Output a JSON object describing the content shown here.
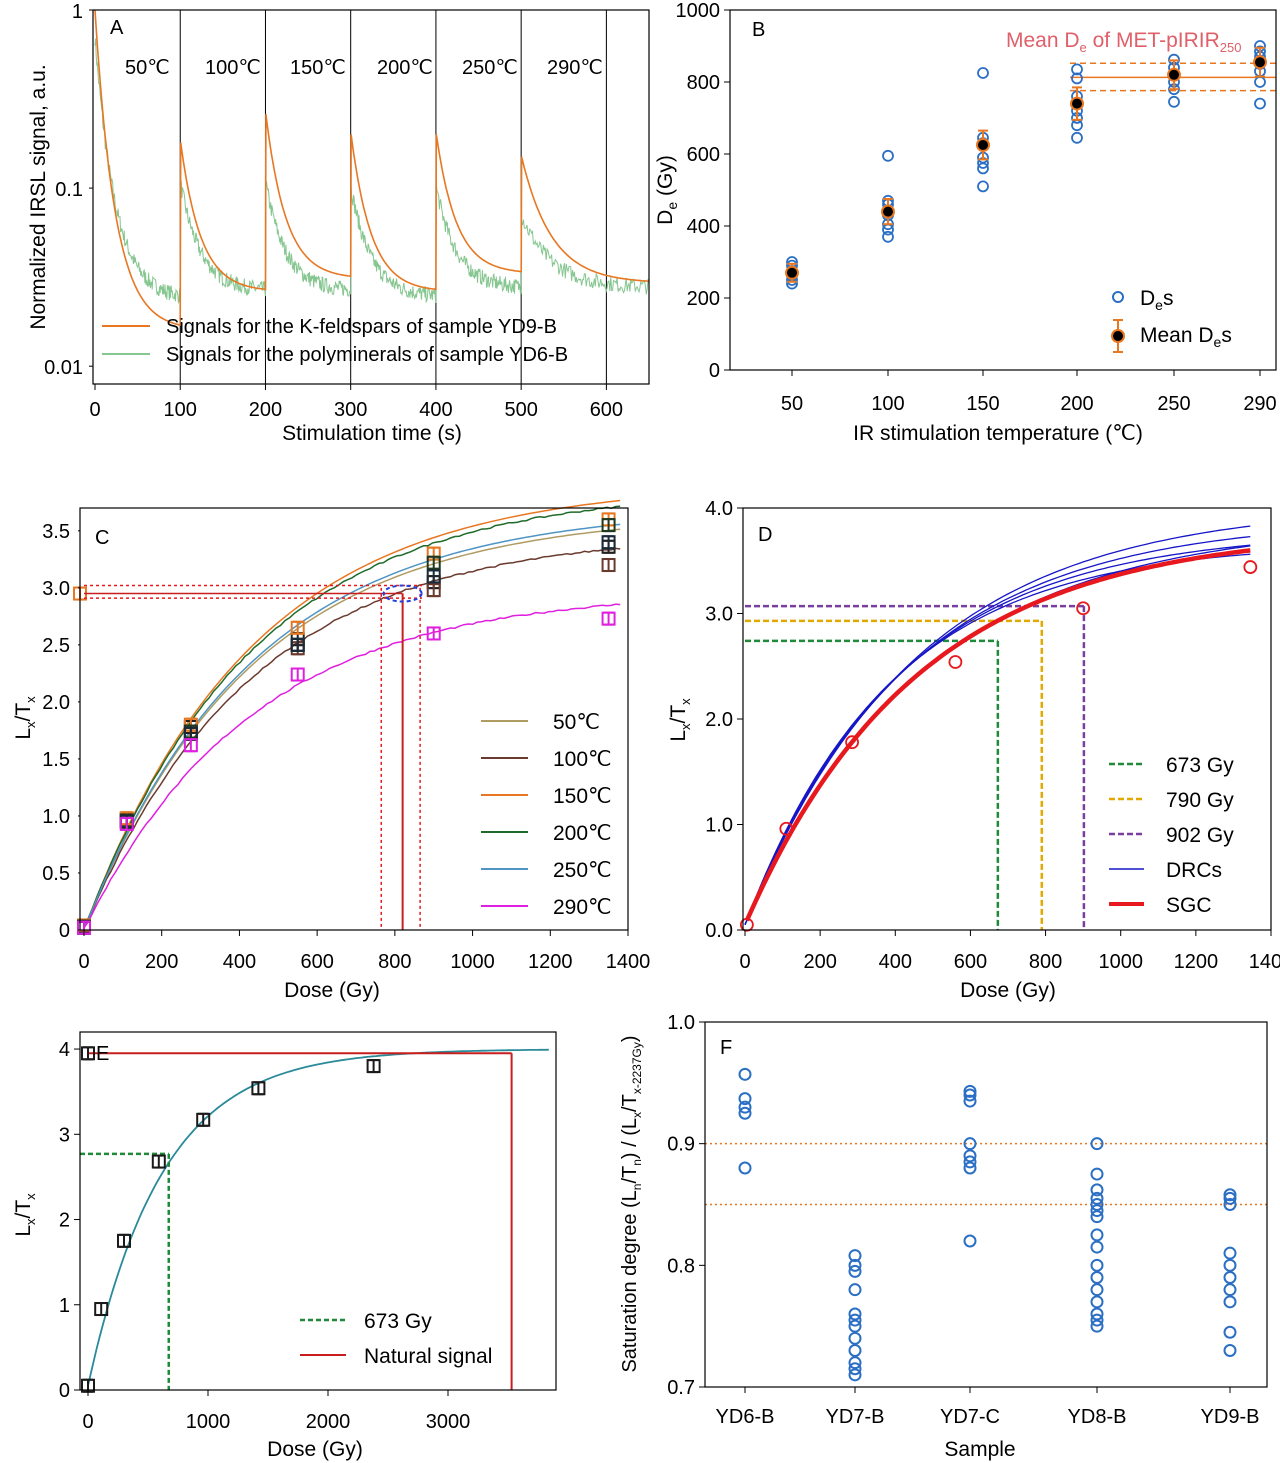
{
  "figure": {
    "background": "#ffffff",
    "frame_color": "#000000"
  },
  "colors": {
    "orange": "#e87722",
    "green_light": "#86c690",
    "blue_marker": "#2b6fc4",
    "brown": "#6b3a2e",
    "olive": "#b09c63",
    "dark_green": "#1f6b2a",
    "steel_blue": "#4f95c4",
    "magenta": "#e020e0",
    "red": "#e8191e",
    "navy": "#1616c8",
    "purple": "#7a3ea0",
    "gold": "#e0a800",
    "teal": "#2a8a9a",
    "pink_label": "#e0606a",
    "dark_red": "#c81e1e"
  },
  "chart_data": [
    {
      "panel": "A",
      "type": "line",
      "xlabel": "Stimulation time (s)",
      "ylabel": "Normalized IRSL signal, a.u.",
      "x_ticks": [
        "0",
        "100",
        "200",
        "300",
        "400",
        "500",
        "600"
      ],
      "y_ticks": [
        "0.01",
        "0.1",
        "1"
      ],
      "ylim": [
        0.01,
        1
      ],
      "y_scale": "log",
      "xlim": [
        0,
        650
      ],
      "segment_boundaries_s": [
        100,
        200,
        300,
        400,
        500,
        600
      ],
      "segment_labels": [
        "50℃",
        "100℃",
        "150℃",
        "200℃",
        "250℃",
        "290℃"
      ],
      "series": [
        {
          "name": "Signals for the K-feldspars of sample YD9-B",
          "segment_start": [
            1.0,
            0.18,
            0.26,
            0.2,
            0.2,
            0.15
          ],
          "segment_end": [
            0.017,
            0.027,
            0.032,
            0.027,
            0.034,
            0.03
          ]
        },
        {
          "name": "Signals for the polyminerals of sample YD6-B",
          "segment_start": [
            0.7,
            0.105,
            0.105,
            0.1,
            0.1,
            0.07
          ],
          "segment_end": [
            0.025,
            0.027,
            0.027,
            0.025,
            0.028,
            0.028
          ]
        }
      ],
      "legend": "bottom"
    },
    {
      "panel": "B",
      "type": "scatter",
      "xlabel": "IR stimulation temperature (℃)",
      "ylabel": "De (Gy)",
      "x_ticks": [
        "50",
        "100",
        "150",
        "200",
        "250",
        "290"
      ],
      "y_ticks": [
        "0",
        "200",
        "400",
        "600",
        "800",
        "1000"
      ],
      "ylim": [
        0,
        1000
      ],
      "annotation": "Mean De of MET-pIRIR250",
      "mean_line": 813,
      "band": [
        776,
        852
      ],
      "categories": [
        50,
        100,
        150,
        200,
        250,
        290
      ],
      "individual_De": [
        [
          240,
          250,
          262,
          275,
          290,
          300
        ],
        [
          370,
          390,
          405,
          430,
          460,
          470,
          595
        ],
        [
          510,
          560,
          575,
          590,
          630,
          645,
          825
        ],
        [
          645,
          680,
          700,
          720,
          760,
          810,
          835
        ],
        [
          745,
          780,
          800,
          820,
          840,
          862
        ],
        [
          740,
          800,
          830,
          850,
          870,
          885,
          900
        ]
      ],
      "mean_De": [
        270,
        440,
        625,
        740,
        820,
        855
      ],
      "mean_err": [
        25,
        35,
        40,
        45,
        40,
        40
      ],
      "series": [
        {
          "name": "Des"
        },
        {
          "name": "Mean Des"
        }
      ],
      "legend": "bottom-right"
    },
    {
      "panel": "C",
      "type": "line",
      "xlabel": "Dose (Gy)",
      "ylabel": "Lx/Tx",
      "x_ticks": [
        "0",
        "200",
        "400",
        "600",
        "800",
        "1000",
        "1200",
        "1400"
      ],
      "y_ticks": [
        "0",
        "0.5",
        "1.0",
        "1.5",
        "2.0",
        "2.5",
        "3.0",
        "3.5"
      ],
      "xlim": [
        0,
        1400
      ],
      "ylim": [
        0,
        3.7
      ],
      "natural_level": 2.95,
      "natural_band": [
        2.91,
        3.02
      ],
      "de_line": 820,
      "de_band": [
        765,
        865
      ],
      "doses": [
        0,
        110,
        275,
        550,
        900,
        1350
      ],
      "series": [
        {
          "name": "50℃",
          "values": [
            0.03,
            0.97,
            1.78,
            2.55,
            3.05,
            3.36
          ]
        },
        {
          "name": "100℃",
          "values": [
            0.02,
            0.95,
            1.72,
            2.47,
            2.98,
            3.2
          ]
        },
        {
          "name": "150℃",
          "values": [
            0.04,
            0.98,
            1.8,
            2.65,
            3.3,
            3.6
          ]
        },
        {
          "name": "200℃",
          "values": [
            0.03,
            0.96,
            1.74,
            2.5,
            3.22,
            3.55
          ]
        },
        {
          "name": "250℃",
          "values": [
            0.02,
            0.95,
            1.72,
            2.5,
            3.1,
            3.4
          ]
        },
        {
          "name": "290℃",
          "values": [
            0.02,
            0.93,
            1.62,
            2.24,
            2.6,
            2.73
          ]
        }
      ],
      "legend": "right"
    },
    {
      "panel": "D",
      "type": "line",
      "xlabel": "Dose (Gy)",
      "ylabel": "Lx/Tx",
      "x_ticks": [
        "0",
        "200",
        "400",
        "600",
        "800",
        "1000",
        "1200",
        "1400"
      ],
      "y_ticks": [
        "0.0",
        "1.0",
        "2.0",
        "3.0",
        "4.0"
      ],
      "xlim": [
        0,
        1400
      ],
      "ylim": [
        0,
        4
      ],
      "sgc_points": {
        "x": [
          5,
          110,
          285,
          560,
          900,
          1345
        ],
        "y": [
          0.05,
          0.96,
          1.78,
          2.54,
          3.05,
          3.44
        ]
      },
      "de_values": [
        {
          "name": "673 Gy",
          "dose": 673,
          "level": 2.74
        },
        {
          "name": "790 Gy",
          "dose": 790,
          "level": 2.93
        },
        {
          "name": "902 Gy",
          "dose": 902,
          "level": 3.07
        }
      ],
      "series": [
        {
          "name": "DRCs"
        },
        {
          "name": "SGC"
        }
      ],
      "legend": "bottom-right"
    },
    {
      "panel": "E",
      "type": "line",
      "xlabel": "Dose (Gy)",
      "ylabel": "Lx/Tx",
      "x_ticks": [
        "0",
        "1000",
        "2000",
        "3000"
      ],
      "y_ticks": [
        "0",
        "1",
        "2",
        "3",
        "4"
      ],
      "xlim": [
        0,
        3900
      ],
      "ylim": [
        0,
        4.2
      ],
      "points": {
        "x": [
          0,
          110,
          300,
          590,
          960,
          1420,
          2380
        ],
        "y": [
          0.05,
          0.95,
          1.75,
          2.68,
          3.17,
          3.54,
          3.8
        ]
      },
      "natural_level": 3.95,
      "natural_dose": 3530,
      "de_level": 2.77,
      "de_dose": 673,
      "series": [
        {
          "name": "673 Gy"
        },
        {
          "name": "Natural signal"
        }
      ],
      "legend": "bottom-right"
    },
    {
      "panel": "F",
      "type": "scatter",
      "xlabel": "Sample",
      "ylabel": "Saturation degree (Ln/Tn) / (Lx/Tx-2237Gy)",
      "categories": [
        "YD6-B",
        "YD7-B",
        "YD7-C",
        "YD8-B",
        "YD9-B"
      ],
      "y_ticks": [
        "0.7",
        "0.8",
        "0.9",
        "1.0"
      ],
      "ylim": [
        0.7,
        1.0
      ],
      "reference_lines": [
        0.85,
        0.9
      ],
      "values": [
        [
          0.88,
          0.925,
          0.93,
          0.937,
          0.957
        ],
        [
          0.71,
          0.715,
          0.72,
          0.73,
          0.74,
          0.75,
          0.755,
          0.76,
          0.78,
          0.795,
          0.8,
          0.808
        ],
        [
          0.82,
          0.88,
          0.885,
          0.89,
          0.9,
          0.935,
          0.94,
          0.943
        ],
        [
          0.75,
          0.755,
          0.76,
          0.77,
          0.78,
          0.79,
          0.8,
          0.815,
          0.825,
          0.84,
          0.845,
          0.85,
          0.855,
          0.862,
          0.875,
          0.9
        ],
        [
          0.73,
          0.745,
          0.77,
          0.78,
          0.79,
          0.8,
          0.81,
          0.85,
          0.855,
          0.858
        ]
      ]
    }
  ],
  "text": {
    "A": {
      "letter": "A",
      "ylabel": "Normalized IRSL signal, a.u.",
      "xlabel": "Stimulation time (s)",
      "legend": [
        "Signals for the K-feldspars of sample YD9-B",
        "Signals for the polyminerals of sample YD6-B"
      ],
      "temps": [
        "50℃",
        "100℃",
        "150℃",
        "200℃",
        "250℃",
        "290℃"
      ]
    },
    "B": {
      "letter": "B",
      "xlabel": "IR stimulation temperature (℃)",
      "ylabel_main": "D",
      "ylabel_sub": "e",
      "ylabel_rest": " (Gy)",
      "ann_a": "Mean D",
      "ann_sub": "e",
      "ann_b": " of MET-pIRIR",
      "ann_sub2": "250",
      "leg1_main": "D",
      "leg1_sub": "e",
      "leg1_rest": "s",
      "leg2_main": "Mean D",
      "leg2_sub": "e",
      "leg2_rest": "s"
    },
    "C": {
      "letter": "C",
      "xlabel": "Dose (Gy)",
      "y_l": "L",
      "y_x": "x",
      "y_t": "/T",
      "y_x2": "x",
      "legend": [
        "50℃",
        "100℃",
        "150℃",
        "200℃",
        "250℃",
        "290℃"
      ]
    },
    "D": {
      "letter": "D",
      "xlabel": "Dose (Gy)",
      "y_l": "L",
      "y_x": "x",
      "y_t": "/T",
      "y_x2": "x",
      "legend": [
        "673 Gy",
        "790 Gy",
        "902 Gy",
        "DRCs",
        "SGC"
      ]
    },
    "E": {
      "letter": "E",
      "xlabel": "Dose (Gy)",
      "y_l": "L",
      "y_x": "x",
      "y_t": "/T",
      "y_x2": "x",
      "legend": [
        "673 Gy",
        "Natural signal"
      ]
    },
    "F": {
      "letter": "F",
      "xlabel": "Sample",
      "y_a": "Saturation degree (L",
      "y_b": "n",
      "y_c": "/T",
      "y_d": "n",
      "y_e": ") / (L",
      "y_f": "x",
      "y_g": "/T",
      "y_h": "x-2237Gy",
      "y_i": ")"
    }
  }
}
